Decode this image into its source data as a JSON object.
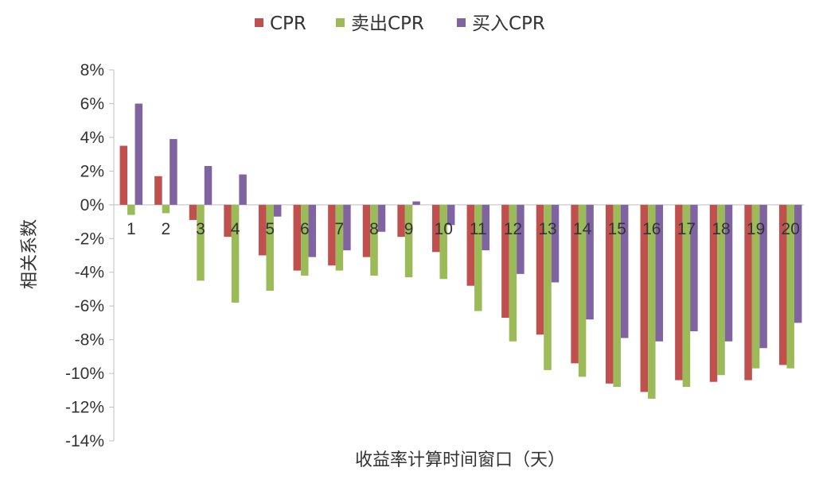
{
  "chart_data": {
    "type": "bar",
    "xlabel": "收益率计算时间窗口（天）",
    "ylabel": "相关系数",
    "ylim": [
      -14,
      8
    ],
    "yticks": [
      "8%",
      "6%",
      "4%",
      "2%",
      "0%",
      "-2%",
      "-4%",
      "-6%",
      "-8%",
      "-10%",
      "-12%",
      "-14%"
    ],
    "legend_position": "top-center",
    "grid": false,
    "categories": [
      "1",
      "2",
      "3",
      "4",
      "5",
      "6",
      "7",
      "8",
      "9",
      "10",
      "11",
      "12",
      "13",
      "14",
      "15",
      "16",
      "17",
      "18",
      "19",
      "20"
    ],
    "series": [
      {
        "name": "CPR",
        "color": "#c0504d",
        "values": [
          3.5,
          1.7,
          -0.9,
          -1.9,
          -3.0,
          -3.9,
          -3.6,
          -3.1,
          -1.9,
          -2.8,
          -4.8,
          -6.7,
          -7.7,
          -9.4,
          -10.6,
          -11.1,
          -10.4,
          -10.5,
          -10.4,
          -9.5
        ]
      },
      {
        "name": "卖出CPR",
        "color": "#9bbb59",
        "values": [
          -0.6,
          -0.5,
          -4.5,
          -5.8,
          -5.1,
          -4.2,
          -3.9,
          -4.2,
          -4.3,
          -4.4,
          -6.3,
          -8.1,
          -9.8,
          -10.2,
          -10.8,
          -11.5,
          -10.8,
          -10.1,
          -9.7,
          -9.7
        ]
      },
      {
        "name": "买入CPR",
        "color": "#8064a2",
        "values": [
          6.0,
          3.9,
          2.3,
          1.8,
          -0.7,
          -3.1,
          -2.7,
          -1.6,
          0.2,
          -1.2,
          -2.7,
          -4.1,
          -4.6,
          -6.8,
          -7.9,
          -8.1,
          -7.5,
          -8.1,
          -8.5,
          -7.0
        ]
      }
    ]
  }
}
